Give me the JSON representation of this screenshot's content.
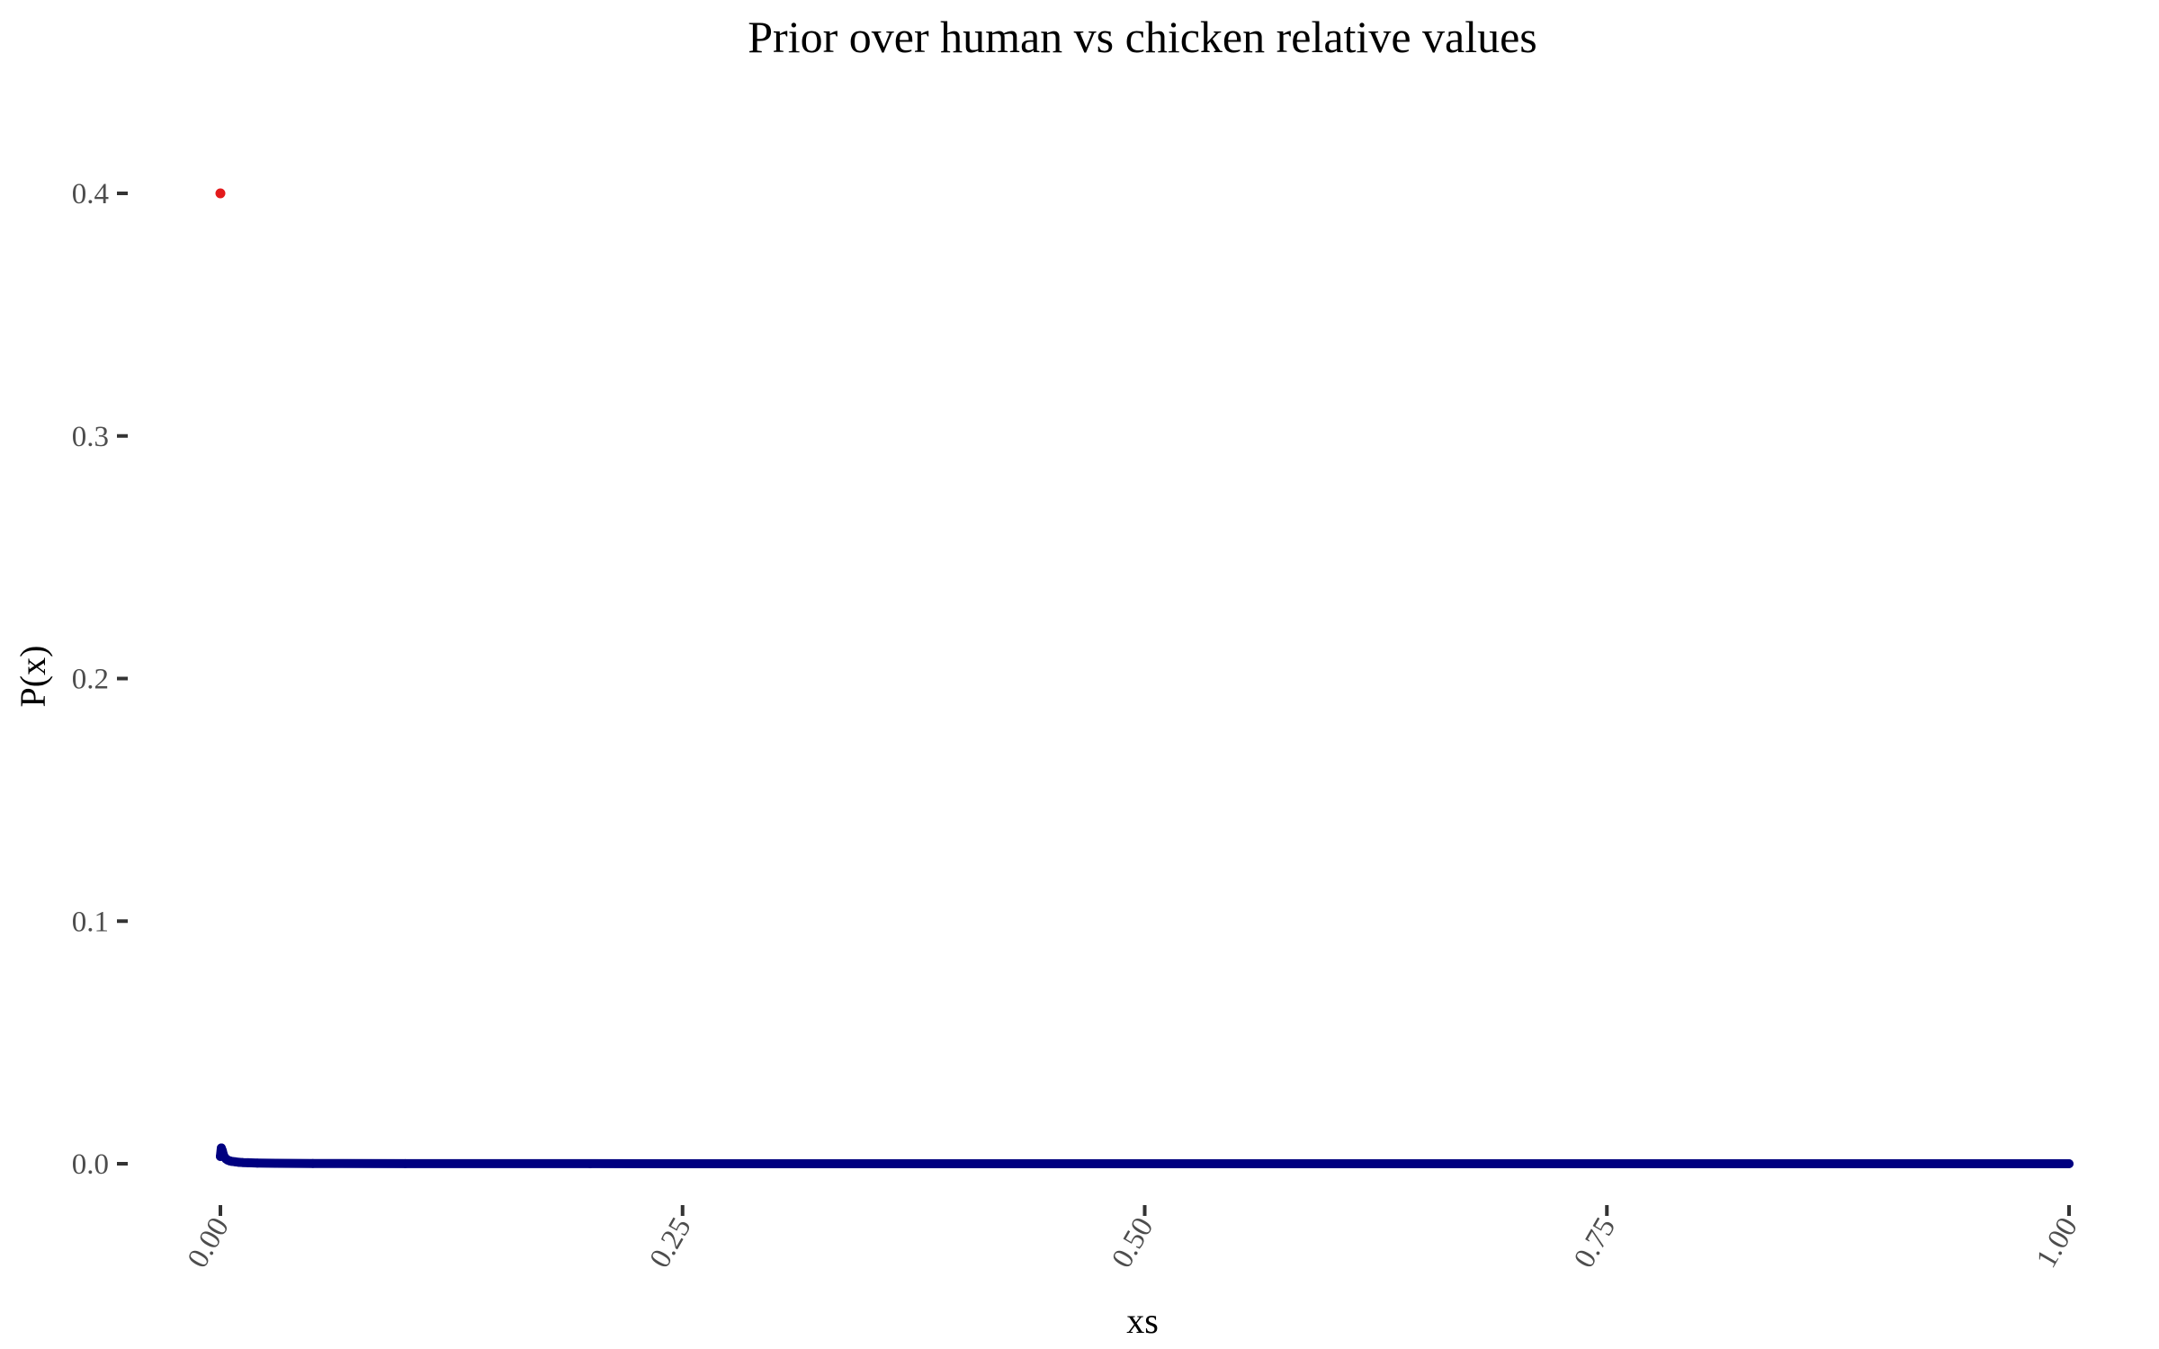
{
  "chart_data": {
    "type": "scatter",
    "title": "Prior over human vs chicken relative values",
    "xlabel": "xs",
    "ylabel": "P(x)",
    "xlim": [
      0,
      1
    ],
    "ylim": [
      0,
      0.4
    ],
    "x_ticks": [
      0,
      0.25,
      0.5,
      0.75,
      1
    ],
    "x_tick_labels": [
      "0.00",
      "0.25",
      "0.50",
      "0.75",
      "1.00"
    ],
    "y_ticks": [
      0,
      0.1,
      0.2,
      0.3,
      0.4
    ],
    "y_tick_labels": [
      "0.0",
      "0.1",
      "0.2",
      "0.3",
      "0.4"
    ],
    "grid": false,
    "legend": "none",
    "colors": {
      "highlight_point": "#e31a1c",
      "distribution": "#000080"
    },
    "highlight_point": {
      "x": 0,
      "y": 0.4
    },
    "series": [
      {
        "x": [
          0,
          0.0005,
          0.001,
          0.0015,
          0.002,
          0.003,
          0.004,
          0.005,
          0.006,
          0.008,
          0.01,
          0.012,
          0.015,
          0.02,
          0.03,
          0.05,
          0.1,
          0.2,
          0.3,
          0.4,
          0.5,
          0.6,
          0.7,
          0.8,
          0.9,
          1
        ],
        "y": [
          0.003,
          0.0065,
          0.0055,
          0.004,
          0.003,
          0.002,
          0.0015,
          0.0012,
          0.001,
          0.0008,
          0.0006,
          0.0005,
          0.0004,
          0.0003,
          0.0002,
          0.0001,
          5e-05,
          2e-05,
          1e-05,
          1e-05,
          1e-05,
          0,
          0,
          0,
          0,
          0
        ]
      }
    ]
  }
}
